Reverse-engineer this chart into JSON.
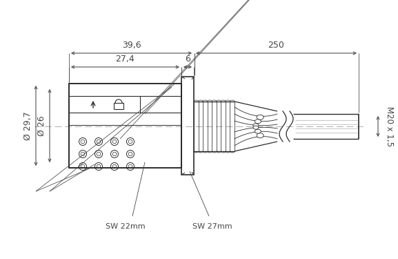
{
  "bg_color": "#ffffff",
  "line_color": "#2a2a2a",
  "dim_color": "#444444",
  "center_color": "#aaaaaa",
  "fig_width": 5.77,
  "fig_height": 3.75,
  "labels": {
    "dim_396": "39,6",
    "dim_250": "250",
    "dim_274": "27,4",
    "dim_6": "6",
    "dia_297": "Ø 29,7",
    "dia_26": "Ø 26",
    "sw22": "SW 22mm",
    "sw27": "SW 27mm",
    "m20": "M20 x 1,5"
  }
}
